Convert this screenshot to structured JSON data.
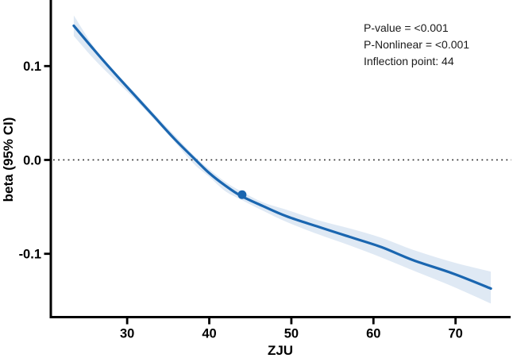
{
  "figure": {
    "background": "#ffffff"
  },
  "chart_data": {
    "type": "line",
    "title": "",
    "xlabel": "ZJU",
    "ylabel": "beta (95% CI)",
    "xlim": [
      20.7,
      77.0
    ],
    "ylim": [
      -0.1662,
      0.1704
    ],
    "grid": false,
    "legend": "none",
    "x_ticks": [
      {
        "value": 30,
        "label": "30"
      },
      {
        "value": 40,
        "label": "40"
      },
      {
        "value": 50,
        "label": "50"
      },
      {
        "value": 60,
        "label": "60"
      },
      {
        "value": 70,
        "label": "70"
      }
    ],
    "y_ticks": [
      {
        "value": 0.1,
        "label": "0.1"
      },
      {
        "value": 0.0,
        "label": "0.0"
      },
      {
        "value": -0.1,
        "label": "-0.1"
      }
    ],
    "reference_line": {
      "y": 0.0,
      "style": "dotted"
    },
    "annotations": {
      "line1": "P-value = <0.001",
      "line2": "P-Nonlinear = <0.001",
      "line3": "Inflection point: 44"
    },
    "inflection_point": {
      "x": 44,
      "y": -0.037
    },
    "series": [
      {
        "name": "beta estimate",
        "x": [
          23.5,
          25.9,
          28.3,
          30.8,
          33.3,
          35.7,
          38.1,
          40.0,
          41.9,
          43.8,
          46.5,
          49.4,
          53.2,
          57.1,
          61.0,
          64.9,
          69.7,
          74.3
        ],
        "y": [
          0.143,
          0.118,
          0.094,
          0.07,
          0.046,
          0.023,
          0.002,
          -0.014,
          -0.027,
          -0.038,
          -0.049,
          -0.06,
          -0.071,
          -0.082,
          -0.093,
          -0.107,
          -0.121,
          -0.137
        ]
      },
      {
        "name": "95% CI upper",
        "x": [
          23.5,
          25.9,
          28.3,
          30.8,
          33.3,
          35.7,
          38.1,
          40.0,
          41.9,
          43.8,
          46.5,
          49.4,
          53.2,
          57.1,
          61.0,
          64.9,
          69.7,
          74.3
        ],
        "y": [
          0.154,
          0.121,
          0.096,
          0.073,
          0.049,
          0.027,
          0.005,
          -0.01,
          -0.023,
          -0.033,
          -0.045,
          -0.053,
          -0.064,
          -0.073,
          -0.083,
          -0.096,
          -0.109,
          -0.119
        ]
      },
      {
        "name": "95% CI lower",
        "x": [
          23.5,
          25.9,
          28.3,
          30.8,
          33.3,
          35.7,
          38.1,
          40.0,
          41.9,
          43.8,
          46.5,
          49.4,
          53.2,
          57.1,
          61.0,
          64.9,
          69.7,
          74.3
        ],
        "y": [
          0.132,
          0.108,
          0.087,
          0.066,
          0.043,
          0.02,
          -0.004,
          -0.018,
          -0.033,
          -0.042,
          -0.054,
          -0.066,
          -0.079,
          -0.091,
          -0.104,
          -0.118,
          -0.135,
          -0.153
        ]
      }
    ],
    "colors": {
      "line": "#1a66b0",
      "band": "#dfe9f4",
      "axis": "#000000",
      "reference": "#2b2b2b"
    }
  }
}
